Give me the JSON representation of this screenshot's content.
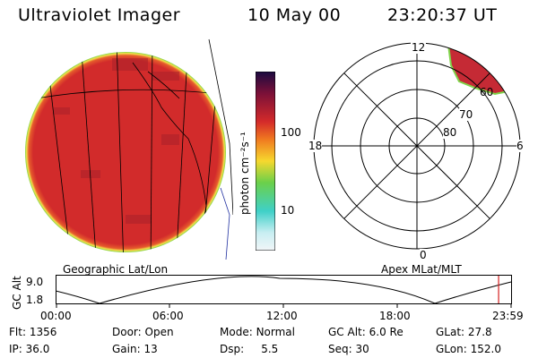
{
  "header": {
    "title": "Ultraviolet Imager",
    "date": "10 May 00",
    "time": "23:20:37 UT"
  },
  "colorbar": {
    "unit_label": "photon cm⁻²s⁻¹",
    "ticks": [
      "100",
      "10"
    ]
  },
  "globe": {
    "caption": "Geographic Lat/Lon"
  },
  "polar": {
    "caption": "Apex MLat/MLT",
    "mlt_labels": [
      "12",
      "18",
      "6",
      "0"
    ],
    "lat_labels": [
      "80",
      "70",
      "60"
    ]
  },
  "altitude_plot": {
    "ylabel": "GC Alt",
    "yticks": [
      "9.0",
      "1.8"
    ],
    "xticks": [
      "00:00",
      "06:00",
      "12:00",
      "18:00",
      "23:59"
    ],
    "current_time_fraction": 0.9725
  },
  "info": {
    "row1": [
      {
        "label": "Flt:",
        "value": "1356"
      },
      {
        "label": "Door:",
        "value": "Open"
      },
      {
        "label": "Mode:",
        "value": "Normal"
      },
      {
        "label": "GC Alt:",
        "value": "6.0 Re"
      },
      {
        "label": "GLat:",
        "value": "27.8"
      }
    ],
    "row2": [
      {
        "label": "IP:",
        "value": "36.0"
      },
      {
        "label": "Gain:",
        "value": "13"
      },
      {
        "label": "Dsp:",
        "value": "5.5"
      },
      {
        "label": "Seq:",
        "value": "30"
      },
      {
        "label": "GLon:",
        "value": "152.0"
      }
    ]
  },
  "colors": {
    "emission": "#d42a2a",
    "emission_edge_green": "#7fd34a",
    "emission_edge_yellow": "#f2e14a",
    "time_marker": "#d42020"
  }
}
